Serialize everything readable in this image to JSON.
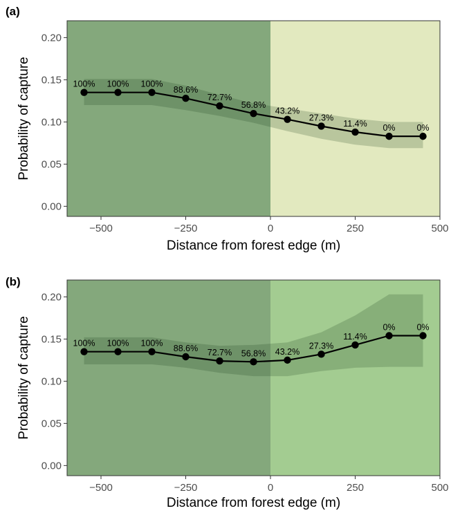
{
  "chart_data": [
    {
      "type": "line",
      "panel_label": "(a)",
      "xlabel": "Distance from forest edge (m)",
      "ylabel": "Probability of capture",
      "xlim": [
        -600,
        500
      ],
      "ylim": [
        -0.012,
        0.22
      ],
      "x_ticks": [
        -500,
        -250,
        0,
        250,
        500
      ],
      "x_tick_labels": [
        "−500",
        "−250",
        "0",
        "250",
        "500"
      ],
      "y_ticks": [
        0.0,
        0.05,
        0.1,
        0.15,
        0.2
      ],
      "y_tick_labels": [
        "0.00",
        "0.05",
        "0.10",
        "0.15",
        "0.20"
      ],
      "grid": false,
      "regions": [
        {
          "x_from": -600,
          "x_to": 0,
          "color": "#84a87c"
        },
        {
          "x_from": 0,
          "x_to": 500,
          "color": "#e2e9bf"
        }
      ],
      "x": [
        -550,
        -450,
        -350,
        -250,
        -150,
        -50,
        50,
        150,
        250,
        350,
        450
      ],
      "series": [
        {
          "y": [
            0.135,
            0.135,
            0.135,
            0.128,
            0.119,
            0.11,
            0.103,
            0.095,
            0.088,
            0.083,
            0.083
          ],
          "ci_lower": [
            0.12,
            0.12,
            0.12,
            0.114,
            0.107,
            0.099,
            0.089,
            0.08,
            0.073,
            0.069,
            0.069
          ],
          "ci_upper": [
            0.151,
            0.151,
            0.151,
            0.143,
            0.132,
            0.122,
            0.116,
            0.11,
            0.104,
            0.1,
            0.1
          ],
          "line_color": "#000000",
          "band_color": "#1a3a1a"
        }
      ],
      "point_labels": [
        "100%",
        "100%",
        "100%",
        "88.6%",
        "72.7%",
        "56.8%",
        "43.2%",
        "27.3%",
        "11.4%",
        "0%",
        "0%"
      ]
    },
    {
      "type": "line",
      "panel_label": "(b)",
      "xlabel": "Distance from forest edge (m)",
      "ylabel": "Probability of capture",
      "xlim": [
        -600,
        500
      ],
      "ylim": [
        -0.012,
        0.22
      ],
      "x_ticks": [
        -500,
        -250,
        0,
        250,
        500
      ],
      "x_tick_labels": [
        "−500",
        "−250",
        "0",
        "250",
        "500"
      ],
      "y_ticks": [
        0.0,
        0.05,
        0.1,
        0.15,
        0.2
      ],
      "y_tick_labels": [
        "0.00",
        "0.05",
        "0.10",
        "0.15",
        "0.20"
      ],
      "grid": false,
      "regions": [
        {
          "x_from": -600,
          "x_to": 0,
          "color": "#84a87c"
        },
        {
          "x_from": 0,
          "x_to": 500,
          "color": "#a3cc91"
        }
      ],
      "x": [
        -550,
        -450,
        -350,
        -250,
        -150,
        -50,
        50,
        150,
        250,
        350,
        450
      ],
      "series": [
        {
          "y": [
            0.135,
            0.135,
            0.135,
            0.129,
            0.124,
            0.123,
            0.125,
            0.132,
            0.143,
            0.154,
            0.154
          ],
          "ci_lower": [
            0.12,
            0.12,
            0.12,
            0.116,
            0.11,
            0.106,
            0.106,
            0.112,
            0.116,
            0.117,
            0.117
          ],
          "ci_upper": [
            0.152,
            0.152,
            0.152,
            0.146,
            0.142,
            0.143,
            0.146,
            0.158,
            0.178,
            0.203,
            0.203
          ],
          "line_color": "#000000",
          "band_color": "#1a3a1a"
        }
      ],
      "point_labels": [
        "100%",
        "100%",
        "100%",
        "88.6%",
        "72.7%",
        "56.8%",
        "43.2%",
        "27.3%",
        "11.4%",
        "0%",
        "0%"
      ]
    }
  ]
}
